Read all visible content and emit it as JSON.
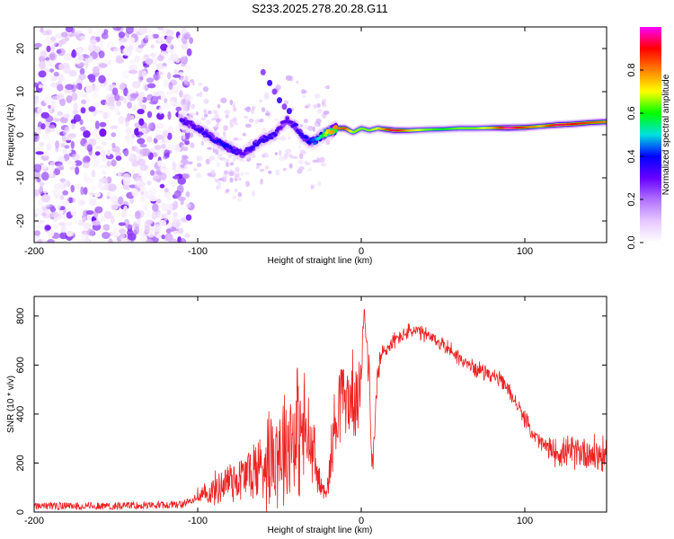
{
  "chart_data": [
    {
      "type": "heatmap",
      "title": "S233.2025.278.20.28.G11",
      "xlabel": "Height of straight line (km)",
      "ylabel": "Frequency (Hz)",
      "xlim": [
        -200,
        150
      ],
      "ylim": [
        -25,
        25
      ],
      "xticks": [
        -200,
        -100,
        0,
        100
      ],
      "yticks": [
        -20,
        -10,
        0,
        10,
        20
      ],
      "colorbar": {
        "label": "Normalized spectral amplitude",
        "range": [
          0,
          1
        ],
        "ticks": [
          0.0,
          0.2,
          0.4,
          0.6,
          0.8
        ],
        "tick_labels": [
          "0.0",
          "0.2",
          "0.4",
          "0.6",
          "0.8"
        ],
        "colors": [
          "#ffffff",
          "#e6c8ff",
          "#b070ff",
          "#6600ff",
          "#0000ff",
          "#00e0e0",
          "#00ff00",
          "#ffff00",
          "#ff8000",
          "#ff0000",
          "#ff00ff"
        ]
      },
      "noise_region_x": [
        -200,
        -110
      ],
      "signal_ridge": {
        "x": [
          -110,
          -105,
          -98,
          -90,
          -84,
          -78,
          -73,
          -67,
          -62,
          -57,
          -53,
          -49,
          -45,
          -40,
          -36,
          -32,
          -28,
          -24,
          -20,
          -15,
          -10,
          -5,
          0,
          5,
          10,
          20,
          30,
          40,
          50,
          60,
          70,
          80,
          90,
          100,
          110,
          120,
          130,
          140,
          150
        ],
        "y": [
          3.5,
          2.5,
          1.0,
          -1.0,
          -2.5,
          -3.5,
          -4.5,
          -3.0,
          -1.5,
          -0.5,
          0.0,
          2.0,
          3.5,
          2.0,
          -0.5,
          -1.5,
          -1.5,
          0.0,
          0.5,
          1.5,
          1.5,
          0.5,
          1.5,
          1.0,
          1.5,
          1.0,
          1.0,
          1.2,
          1.3,
          1.5,
          1.5,
          1.6,
          1.6,
          1.7,
          2.0,
          2.3,
          2.5,
          2.8,
          3.0
        ],
        "amplitude": [
          0.3,
          0.25,
          0.3,
          0.3,
          0.35,
          0.3,
          0.25,
          0.3,
          0.3,
          0.3,
          0.3,
          0.25,
          0.25,
          0.3,
          0.3,
          0.35,
          0.4,
          0.5,
          0.7,
          0.75,
          0.8,
          0.6,
          0.6,
          0.6,
          0.65,
          0.9,
          0.7,
          0.6,
          0.55,
          0.6,
          0.6,
          0.7,
          0.95,
          0.8,
          0.7,
          0.9,
          0.85,
          0.8,
          0.75
        ]
      },
      "side_branch": {
        "x": [
          -60,
          -56,
          -53,
          -50,
          -47,
          -44
        ],
        "y": [
          14.5,
          12.0,
          10.0,
          8.0,
          6.5,
          5.5
        ]
      }
    },
    {
      "type": "line",
      "xlabel": "Height of straight line (km)",
      "ylabel": "SNR (10 * v/v)",
      "xlim": [
        -200,
        150
      ],
      "ylim": [
        0,
        880
      ],
      "xticks": [
        -200,
        -100,
        0,
        100
      ],
      "yticks": [
        0,
        200,
        400,
        600,
        800
      ],
      "series": [
        {
          "name": "SNR",
          "color": "#ee2222",
          "x": [
            -200,
            -150,
            -110,
            -105,
            -100,
            -95,
            -90,
            -85,
            -80,
            -75,
            -70,
            -65,
            -60,
            -55,
            -50,
            -45,
            -40,
            -37,
            -35,
            -32,
            -30,
            -25,
            -22,
            -20,
            -18,
            -15,
            -12,
            -10,
            -8,
            -5,
            -3,
            -1,
            0,
            1,
            2,
            3,
            5,
            6,
            7,
            8,
            10,
            13,
            15,
            20,
            25,
            30,
            35,
            40,
            45,
            50,
            55,
            60,
            65,
            70,
            75,
            80,
            85,
            90,
            95,
            100,
            105,
            110,
            115,
            120,
            125,
            130,
            135,
            140,
            145,
            150
          ],
          "y": [
            25,
            25,
            30,
            45,
            60,
            70,
            90,
            110,
            140,
            130,
            160,
            170,
            200,
            250,
            260,
            290,
            340,
            320,
            330,
            280,
            250,
            100,
            90,
            120,
            250,
            420,
            520,
            470,
            450,
            480,
            430,
            460,
            600,
            750,
            880,
            700,
            550,
            250,
            180,
            320,
            560,
            650,
            660,
            700,
            720,
            740,
            735,
            720,
            700,
            685,
            660,
            630,
            600,
            585,
            575,
            560,
            535,
            500,
            440,
            380,
            320,
            280,
            255,
            245,
            240,
            245,
            250,
            240,
            235,
            220
          ],
          "noise_envelope": [
            15,
            15,
            20,
            35,
            50,
            60,
            80,
            100,
            130,
            120,
            150,
            170,
            220,
            280,
            300,
            320,
            350,
            300,
            300,
            250,
            230,
            60,
            40,
            70,
            200,
            250,
            200,
            150,
            200,
            200,
            150,
            200,
            200,
            150,
            150,
            100,
            100,
            80,
            70,
            100,
            100,
            60,
            50,
            40,
            40,
            40,
            40,
            40,
            40,
            40,
            40,
            40,
            40,
            40,
            40,
            40,
            40,
            40,
            40,
            40,
            40,
            50,
            60,
            70,
            80,
            80,
            90,
            100,
            110,
            80
          ]
        }
      ]
    }
  ]
}
